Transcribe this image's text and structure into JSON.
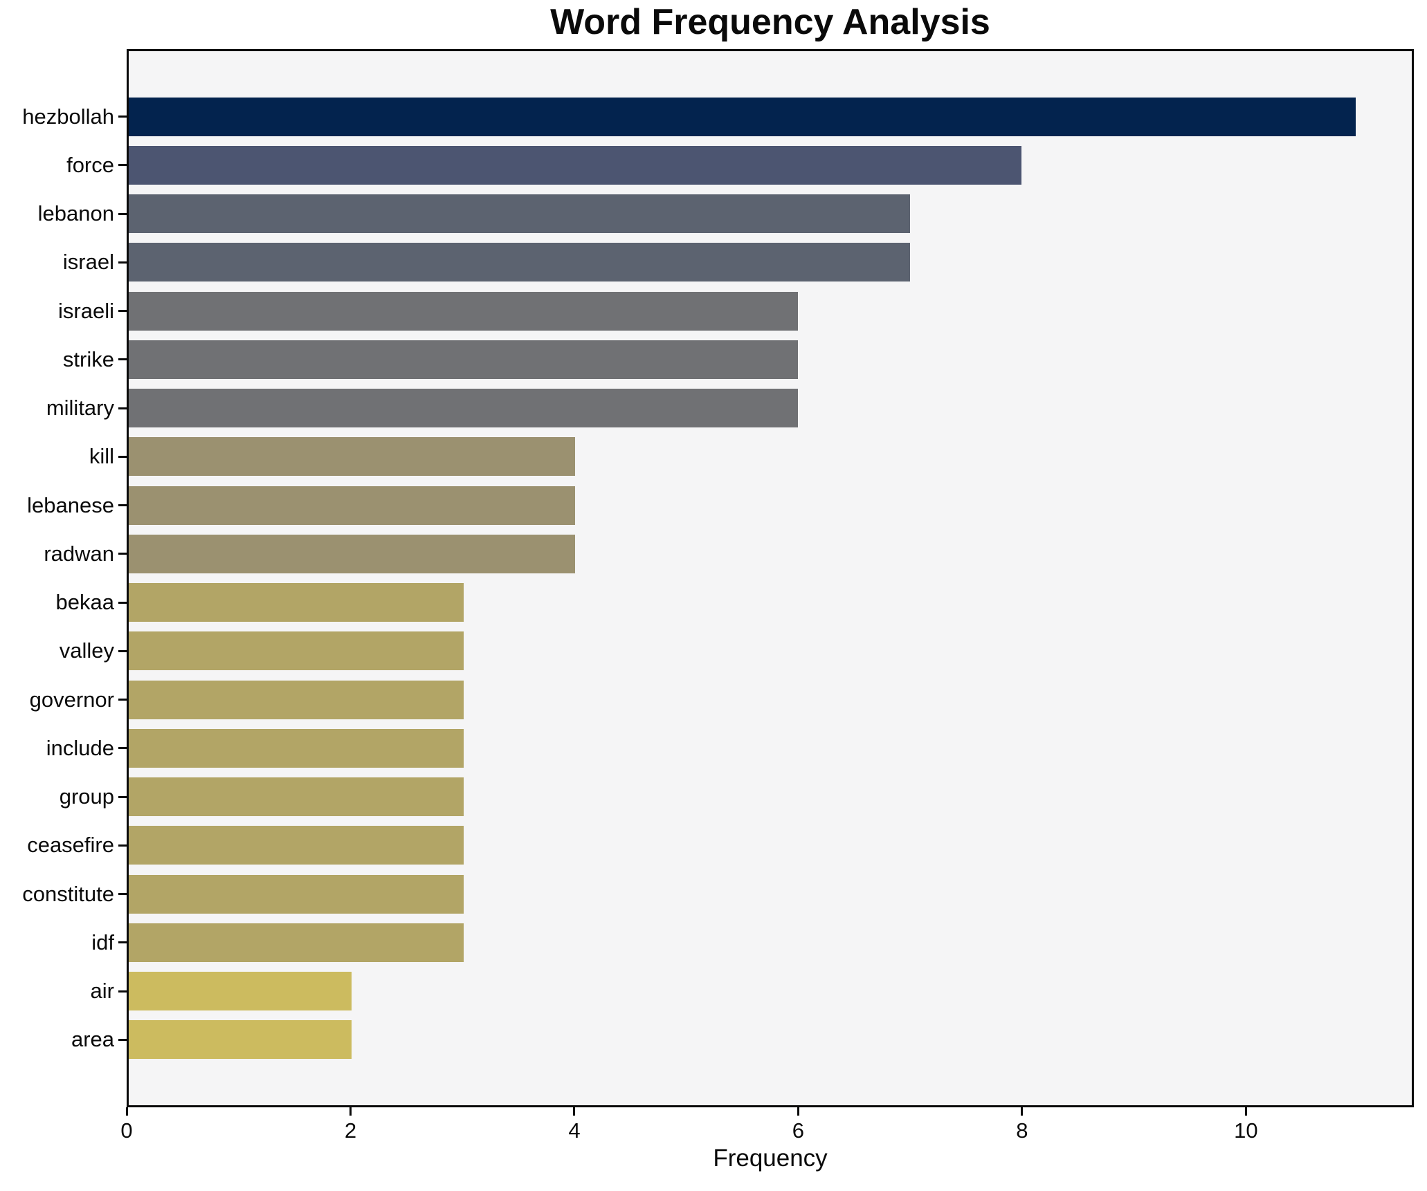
{
  "chart_data": {
    "type": "bar",
    "orientation": "horizontal",
    "title": "Word Frequency Analysis",
    "xlabel": "Frequency",
    "ylabel": "",
    "categories": [
      "hezbollah",
      "force",
      "lebanon",
      "israel",
      "israeli",
      "strike",
      "military",
      "kill",
      "lebanese",
      "radwan",
      "bekaa",
      "valley",
      "governor",
      "include",
      "group",
      "ceasefire",
      "constitute",
      "idf",
      "air",
      "area"
    ],
    "values": [
      11,
      8,
      7,
      7,
      6,
      6,
      6,
      4,
      4,
      4,
      3,
      3,
      3,
      3,
      3,
      3,
      3,
      3,
      2,
      2
    ],
    "bar_colors": [
      "#03234e",
      "#4c5571",
      "#5c6370",
      "#5c6370",
      "#707174",
      "#707174",
      "#707174",
      "#9b9170",
      "#9b9170",
      "#9b9170",
      "#b2a566",
      "#b2a566",
      "#b2a566",
      "#b2a566",
      "#b2a566",
      "#b2a566",
      "#b2a566",
      "#b2a566",
      "#ccbb5f",
      "#ccbb5f"
    ],
    "xlim": [
      0,
      11.5
    ],
    "xticks": [
      0,
      2,
      4,
      6,
      8,
      10
    ],
    "grid": false,
    "legend_position": "none",
    "plot_background": "#f5f5f6",
    "figure_background": "#ffffff",
    "axis_color": "#0a0a0a"
  }
}
